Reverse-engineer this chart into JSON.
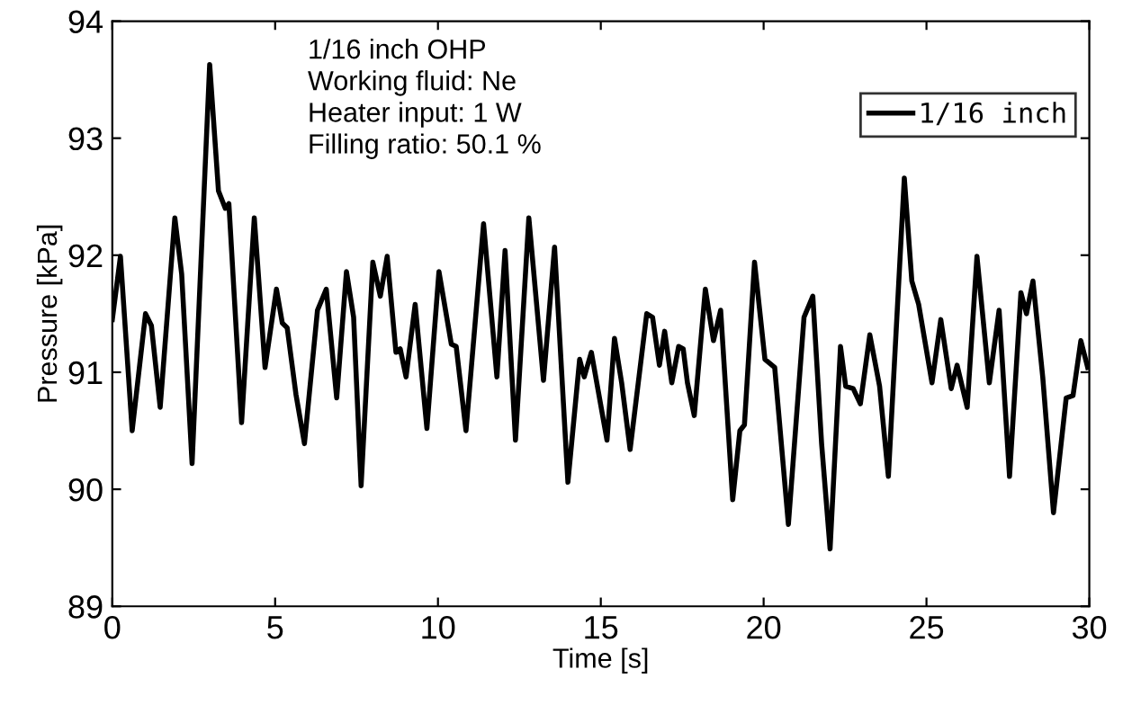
{
  "chart_data": {
    "type": "line",
    "xlabel": "Time [s]",
    "ylabel": "Pressure [kPa]",
    "annotations": [
      "1/16 inch OHP\nWorking fluid: Ne\nHeater input: 1 W\nFilling ratio: 50.1 %"
    ],
    "xlim": [
      0,
      30
    ],
    "xticks": [
      0,
      5,
      10,
      15,
      20,
      25,
      30
    ],
    "ylim": [
      89,
      94
    ],
    "yticks": [
      89,
      90,
      91,
      92,
      93,
      94
    ],
    "grid": false,
    "legend": "top right",
    "marker": "none",
    "line_style": "solid",
    "series": [
      {
        "name": "1/16 inch",
        "color": "#000000",
        "x": [
          0,
          0.25,
          0.61,
          1.02,
          1.2,
          1.47,
          1.92,
          2.13,
          2.45,
          2.99,
          3.26,
          3.47,
          3.58,
          3.97,
          4.36,
          4.69,
          5.04,
          5.22,
          5.37,
          5.64,
          5.9,
          6.3,
          6.57,
          6.89,
          7.19,
          7.41,
          7.64,
          8.0,
          8.23,
          8.44,
          8.71,
          8.84,
          9.02,
          9.3,
          9.66,
          10.03,
          10.41,
          10.56,
          10.86,
          11.4,
          11.81,
          12.06,
          12.38,
          12.79,
          13.24,
          13.58,
          13.99,
          14.35,
          14.49,
          14.71,
          15.19,
          15.42,
          15.64,
          15.9,
          16.41,
          16.59,
          16.8,
          16.96,
          17.18,
          17.39,
          17.53,
          17.66,
          17.87,
          18.21,
          18.46,
          18.68,
          19.05,
          19.27,
          19.41,
          19.72,
          20.04,
          20.34,
          20.76,
          21.24,
          21.51,
          21.78,
          22.04,
          22.36,
          22.52,
          22.75,
          22.97,
          23.26,
          23.56,
          23.83,
          24.32,
          24.55,
          24.76,
          25.17,
          25.44,
          25.76,
          25.94,
          26.25,
          26.55,
          26.93,
          27.23,
          27.55,
          27.9,
          28.07,
          28.27,
          28.57,
          28.9,
          29.29,
          29.5,
          29.74,
          29.95
        ],
        "values": [
          91.45,
          91.99,
          90.5,
          91.5,
          91.4,
          90.7,
          92.32,
          91.84,
          90.22,
          93.63,
          92.55,
          92.4,
          92.44,
          90.57,
          92.32,
          91.04,
          91.71,
          91.42,
          91.38,
          90.81,
          90.39,
          91.53,
          91.71,
          90.78,
          91.86,
          91.47,
          90.03,
          91.94,
          91.65,
          91.99,
          91.17,
          91.2,
          90.96,
          91.58,
          90.52,
          91.86,
          91.24,
          91.22,
          90.5,
          92.27,
          90.96,
          92.04,
          90.42,
          92.32,
          90.93,
          92.07,
          90.06,
          91.11,
          90.96,
          91.17,
          90.42,
          91.29,
          90.91,
          90.34,
          91.5,
          91.47,
          91.06,
          91.35,
          90.91,
          91.22,
          91.2,
          90.91,
          90.63,
          91.71,
          91.27,
          91.53,
          89.91,
          90.5,
          90.55,
          91.94,
          91.11,
          91.04,
          89.7,
          91.47,
          91.65,
          90.39,
          89.49,
          91.22,
          90.88,
          90.86,
          90.73,
          91.32,
          90.88,
          90.11,
          92.66,
          91.78,
          91.58,
          90.91,
          91.45,
          90.86,
          91.06,
          90.7,
          91.99,
          90.91,
          91.53,
          90.11,
          91.68,
          91.5,
          91.78,
          90.96,
          89.8,
          90.78,
          90.8,
          91.27,
          91.04
        ]
      }
    ]
  }
}
